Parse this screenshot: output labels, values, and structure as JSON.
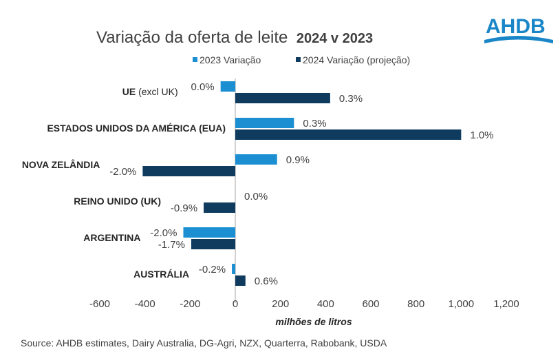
{
  "logo": {
    "text": "AHDB",
    "color": "#1a86c8"
  },
  "source": "Source: AHDB estimates, Dairy Australia, DG-Agri, NZX, Quarterra, Rabobank, USDA",
  "chart_data": {
    "type": "bar",
    "orientation": "horizontal",
    "title": "Variação da oferta de leite",
    "title_bold": "2024 v 2023",
    "xlabel": "milhões de litros",
    "ylabel": "",
    "xlim": [
      -600,
      1200
    ],
    "xticks": [
      "-600",
      "-400",
      "-200",
      "0",
      "200",
      "400",
      "600",
      "800",
      "1,000",
      "1,200"
    ],
    "xtick_values": [
      -600,
      -400,
      -200,
      0,
      200,
      400,
      600,
      800,
      1000,
      1200
    ],
    "grid": false,
    "legend_position": "top",
    "categories": [
      {
        "main": "UE",
        "sub": " (excl UK)"
      },
      {
        "main": "ESTADOS UNIDOS DA AMÉRICA (EUA)",
        "sub": ""
      },
      {
        "main": "NOVA ZELÂNDIA",
        "sub": ""
      },
      {
        "main": "REINO UNIDO (UK)",
        "sub": ""
      },
      {
        "main": "ARGENTINA",
        "sub": ""
      },
      {
        "main": "AUSTRÁLIA",
        "sub": ""
      }
    ],
    "series": [
      {
        "name": "2023 Variação",
        "color": "#1b8fd2",
        "values": [
          -65,
          260,
          185,
          0,
          -230,
          -15
        ],
        "labels": [
          "0.0%",
          "0.3%",
          "0.9%",
          "0.0%",
          "-2.0%",
          "-0.2%"
        ]
      },
      {
        "name": "2024 Variação (projeção)",
        "color": "#0f3b5f",
        "values": [
          420,
          1000,
          -410,
          -140,
          -195,
          45
        ],
        "labels": [
          "0.3%",
          "1.0%",
          "-2.0%",
          "-0.9%",
          "-1.7%",
          "0.6%"
        ]
      }
    ]
  }
}
